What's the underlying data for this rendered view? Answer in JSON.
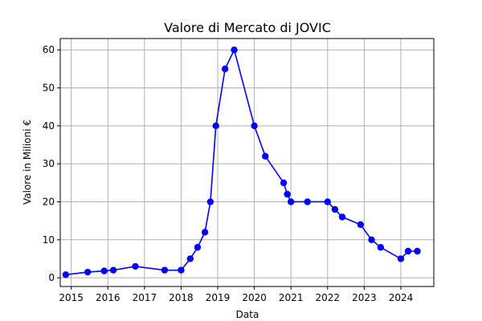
{
  "chart_data": {
    "type": "line",
    "title": "Valore di Mercato di JOVIC",
    "xlabel": "Data",
    "ylabel": "Valore in Milioni €",
    "xlim": [
      2014.7,
      2024.9
    ],
    "ylim": [
      -2.3,
      63
    ],
    "x_ticks": [
      2015,
      2016,
      2017,
      2018,
      2019,
      2020,
      2021,
      2022,
      2023,
      2024
    ],
    "x_tick_labels": [
      "2015",
      "2016",
      "2017",
      "2018",
      "2019",
      "2020",
      "2021",
      "2022",
      "2023",
      "2024"
    ],
    "y_ticks": [
      0,
      10,
      20,
      30,
      40,
      50,
      60
    ],
    "y_tick_labels": [
      "0",
      "10",
      "20",
      "30",
      "40",
      "50",
      "60"
    ],
    "grid": true,
    "color": "#0000ff",
    "series": [
      {
        "x": [
          2014.85,
          2015.45,
          2015.9,
          2016.15,
          2016.75,
          2017.55,
          2018.0,
          2018.25,
          2018.45,
          2018.65,
          2018.8,
          2018.95,
          2019.2,
          2019.45,
          2020.0,
          2020.3,
          2020.8,
          2020.9,
          2021.0,
          2021.45,
          2022.0,
          2022.2,
          2022.4,
          2022.9,
          2023.2,
          2023.45,
          2024.0,
          2024.2,
          2024.45
        ],
        "y": [
          0.8,
          1.5,
          1.8,
          2.0,
          3.0,
          2.0,
          2.0,
          5.0,
          8.0,
          12.0,
          20.0,
          40.0,
          55.0,
          60.0,
          40.0,
          32.0,
          25.0,
          22.0,
          20.0,
          20.0,
          20.0,
          18.0,
          16.0,
          14.0,
          10.0,
          8.0,
          5.0,
          7.0,
          7.0
        ]
      }
    ]
  }
}
